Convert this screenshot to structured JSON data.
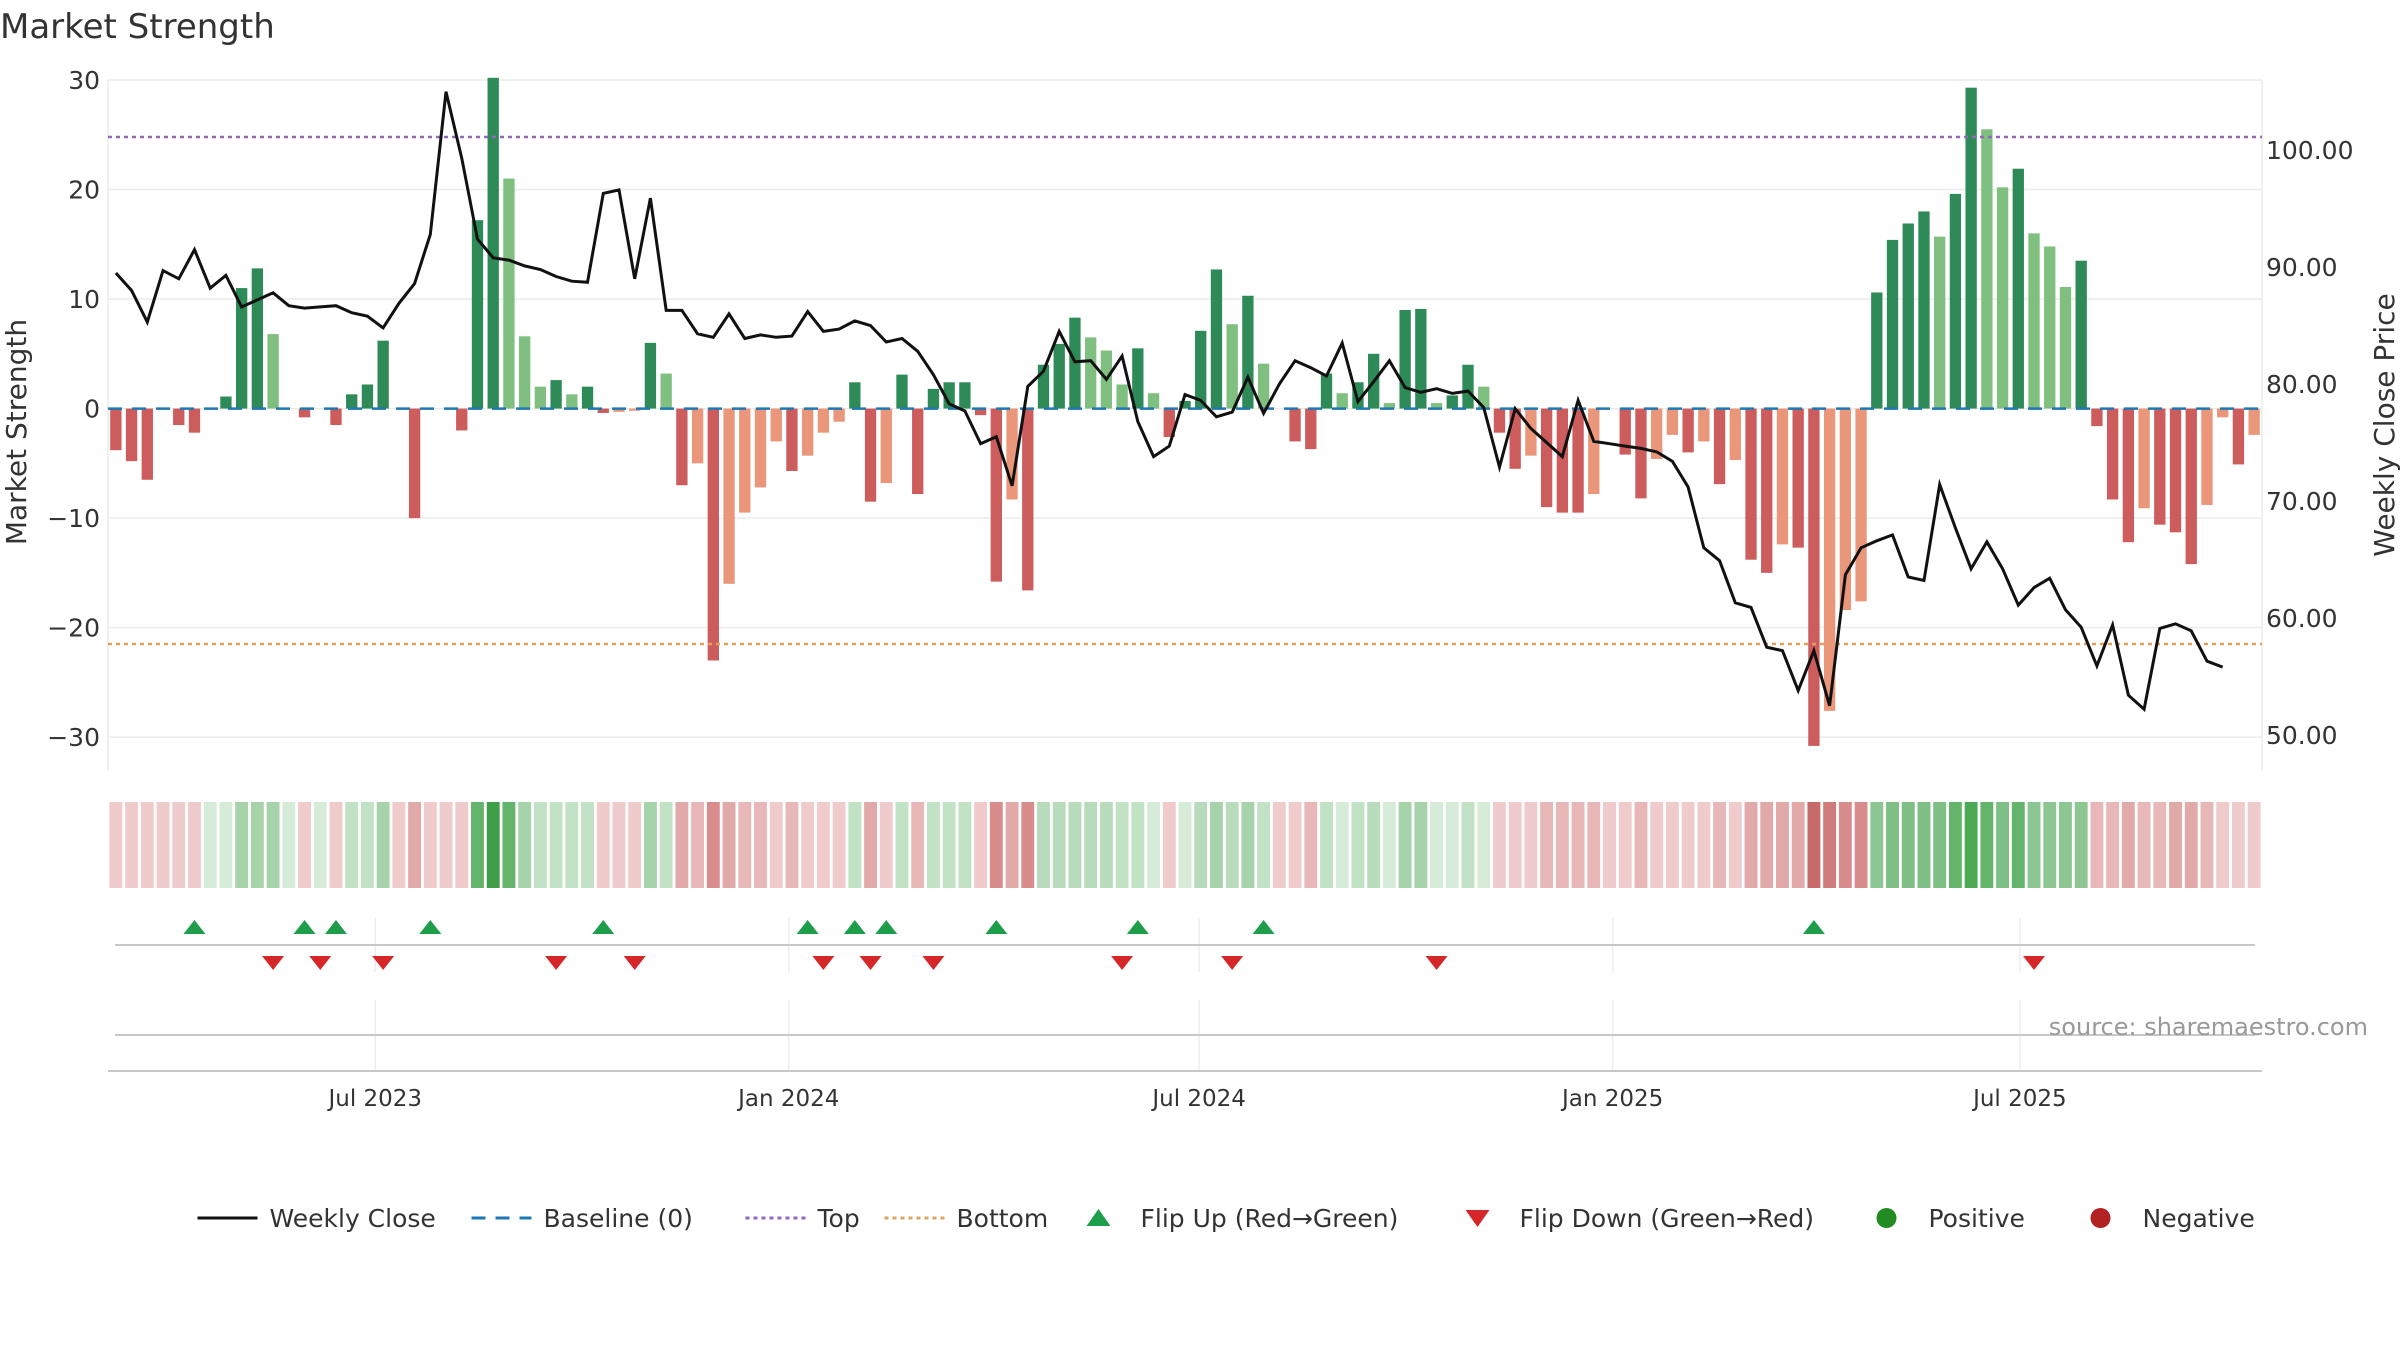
{
  "chart_data": {
    "type": "bar",
    "title": "Market Strength",
    "source": "source: sharemaestro.com",
    "ylabel_left": "Market Strength",
    "ylabel_right": "Weekly Close Price",
    "ylim_left": [
      -33,
      30
    ],
    "ylim_right": [
      47,
      106
    ],
    "yticks_left": [
      {
        "v": 30,
        "label": "30"
      },
      {
        "v": 20,
        "label": "20"
      },
      {
        "v": 10,
        "label": "10"
      },
      {
        "v": 0,
        "label": "0"
      },
      {
        "v": -10,
        "label": "−10"
      },
      {
        "v": -20,
        "label": "−20"
      },
      {
        "v": -30,
        "label": "−30"
      }
    ],
    "yticks_right": [
      {
        "v": 100,
        "label": "100.00"
      },
      {
        "v": 90,
        "label": "90.00"
      },
      {
        "v": 80,
        "label": "80.00"
      },
      {
        "v": 70,
        "label": "70.00"
      },
      {
        "v": 60,
        "label": "60.00"
      },
      {
        "v": 50,
        "label": "50.00"
      }
    ],
    "x_start_week": 0,
    "x_end_week": 133,
    "xticks": [
      {
        "week": 17.0,
        "label": "Jul 2023"
      },
      {
        "week": 43.3,
        "label": "Jan 2024"
      },
      {
        "week": 69.4,
        "label": "Jul 2024"
      },
      {
        "week": 95.7,
        "label": "Jan 2025"
      },
      {
        "week": 121.6,
        "label": "Jul 2025"
      }
    ],
    "top_line": 24.8,
    "bottom_line": -21.5,
    "strength": [
      -3.8,
      -4.8,
      -6.5,
      0,
      -1.5,
      -2.2,
      0,
      1.1,
      11,
      12.8,
      6.8,
      0,
      -0.8,
      0,
      -1.5,
      1.3,
      2.2,
      6.2,
      0,
      -10,
      0,
      0,
      -2,
      17.2,
      30.2,
      21,
      6.6,
      2,
      2.6,
      1.3,
      2,
      -0.4,
      -0.3,
      -0.2,
      6,
      3.2,
      -7,
      -5,
      -23,
      -16,
      -9.5,
      -7.2,
      -3,
      -5.7,
      -4.3,
      -2.2,
      -1.2,
      2.4,
      -8.5,
      -6.8,
      3.1,
      -7.8,
      1.8,
      2.4,
      2.4,
      -0.6,
      -15.8,
      -8.3,
      -16.6,
      4,
      5.9,
      8.3,
      6.5,
      5.3,
      2.2,
      5.5,
      1.4,
      -2.6,
      0.7,
      7.1,
      12.7,
      7.7,
      10.3,
      4.1,
      0,
      -3,
      -3.7,
      3.2,
      1.4,
      2.4,
      5,
      0.5,
      9,
      9.1,
      0.5,
      1.2,
      4,
      2,
      -2.2,
      -5.5,
      -4.3,
      -9,
      -9.5,
      -9.5,
      -7.8,
      0,
      -4.2,
      -8.2,
      -4.6,
      -2.4,
      -4,
      -3,
      -6.9,
      -4.7,
      -13.8,
      -15,
      -12.4,
      -12.7,
      -30.8,
      -27.6,
      -18.4,
      -17.6,
      10.6,
      15.4,
      16.9,
      18,
      15.7,
      19.6,
      29.3,
      25.5,
      20.2,
      21.9,
      16,
      14.8,
      11.1,
      13.5,
      -1.6,
      -8.3,
      -12.2,
      -9.1,
      -10.6,
      -11.3,
      -14.2,
      -8.8,
      -0.8,
      -5.1,
      -2.4
    ],
    "weekly_close": [
      89.5,
      88,
      85.3,
      89.7,
      89,
      91.5,
      88.2,
      89.3,
      86.6,
      87.2,
      87.8,
      86.7,
      86.5,
      86.6,
      86.7,
      86.1,
      85.8,
      84.8,
      86.9,
      88.6,
      92.8,
      105,
      99.3,
      92.4,
      90.8,
      90.6,
      90.1,
      89.8,
      89.2,
      88.8,
      88.7,
      96.3,
      96.6,
      89,
      95.9,
      86.3,
      86.3,
      84.3,
      84,
      86,
      83.9,
      84.2,
      84,
      84.1,
      86.2,
      84.5,
      84.7,
      85.4,
      85,
      83.6,
      83.9,
      82.8,
      80.8,
      78.3,
      77.7,
      74.9,
      75.5,
      71.3,
      79.8,
      81.1,
      84.5,
      81.9,
      82,
      80.4,
      82.4,
      76.8,
      73.8,
      74.7,
      79.1,
      78.6,
      77.2,
      77.6,
      80.6,
      77.5,
      80,
      82,
      81.4,
      80.7,
      83.5,
      78.5,
      80.2,
      82,
      79.7,
      79.3,
      79.6,
      79.2,
      79.4,
      78,
      72.9,
      77.9,
      76.2,
      75,
      73.8,
      78.6,
      75.1,
      74.9,
      74.7,
      74.5,
      74.2,
      73.4,
      71.2,
      66,
      64.9,
      61.3,
      60.9,
      57.5,
      57.2,
      53.8,
      57.2,
      52.5,
      63.7,
      66,
      66.6,
      67.1,
      63.5,
      63.2,
      71.4,
      67.7,
      64.2,
      66.5,
      64.2,
      61.1,
      62.6,
      63.4,
      60.7,
      59.2,
      55.9,
      59.4,
      53.4,
      52.2,
      59.1,
      59.5,
      58.9,
      56.3,
      55.8
    ],
    "heat_colors": [
      "#f0cbcb",
      "#f0cbcb",
      "#f0cbcb",
      "#f0cbcb",
      "#f0cbcb",
      "#f0cbcb",
      "#d6ecd8",
      "#d6ecd8",
      "#a7d3ab",
      "#a7d3ab",
      "#a7d3ab",
      "#d6ecd8",
      "#f0cbcb",
      "#d6ecd8",
      "#f0cbcb",
      "#c2e2c5",
      "#c2e2c5",
      "#a7d3ab",
      "#f0cbcb",
      "#e2a9a9",
      "#f0cbcb",
      "#f0cbcb",
      "#f0cbcb",
      "#64b46c",
      "#3f9f49",
      "#64b46c",
      "#a7d3ab",
      "#c2e2c5",
      "#c2e2c5",
      "#c2e2c5",
      "#c2e2c5",
      "#f0cbcb",
      "#f0cbcb",
      "#f0cbcb",
      "#a7d3ab",
      "#c2e2c5",
      "#e2a9a9",
      "#e8b8b8",
      "#d98c8c",
      "#e2a9a9",
      "#e8b8b8",
      "#e8b8b8",
      "#f0cbcb",
      "#e8b8b8",
      "#f0cbcb",
      "#f0cbcb",
      "#f0cbcb",
      "#c2e2c5",
      "#e2a9a9",
      "#f0cbcb",
      "#c2e2c5",
      "#e8b8b8",
      "#c2e2c5",
      "#c2e2c5",
      "#c2e2c5",
      "#f0cbcb",
      "#d98c8c",
      "#e2a9a9",
      "#d98c8c",
      "#b8dcbb",
      "#b8dcbb",
      "#b8dcbb",
      "#b8dcbb",
      "#b8dcbb",
      "#c2e2c5",
      "#c2e2c5",
      "#d6ecd8",
      "#f0cbcb",
      "#d6ecd8",
      "#b8dcbb",
      "#a7d3ab",
      "#b8dcbb",
      "#a7d3ab",
      "#c2e2c5",
      "#f0cbcb",
      "#f0cbcb",
      "#e8b8b8",
      "#c2e2c5",
      "#d6ecd8",
      "#c2e2c5",
      "#b8dcbb",
      "#d6ecd8",
      "#a7d3ab",
      "#a7d3ab",
      "#d6ecd8",
      "#d6ecd8",
      "#c2e2c5",
      "#d6ecd8",
      "#f0cbcb",
      "#f0cbcb",
      "#f0cbcb",
      "#e8b8b8",
      "#e8b8b8",
      "#e8b8b8",
      "#e8b8b8",
      "#f0cbcb",
      "#f0cbcb",
      "#e8b8b8",
      "#f0cbcb",
      "#f0cbcb",
      "#f0cbcb",
      "#f0cbcb",
      "#e8b8b8",
      "#f0cbcb",
      "#e2a9a9",
      "#e2a9a9",
      "#e2a9a9",
      "#e2a9a9",
      "#c66a6a",
      "#cf7b7b",
      "#d98c8c",
      "#d98c8c",
      "#8cc692",
      "#7dbf84",
      "#7dbf84",
      "#7dbf84",
      "#7dbf84",
      "#64b46c",
      "#4caa55",
      "#64b46c",
      "#7dbf84",
      "#64b46c",
      "#8cc692",
      "#8cc692",
      "#8cc692",
      "#8cc692",
      "#e8b8b8",
      "#e8b8b8",
      "#e2a9a9",
      "#e8b8b8",
      "#e8b8b8",
      "#e2a9a9",
      "#e2a9a9",
      "#e8b8b8",
      "#f0cbcb",
      "#f0cbcb",
      "#f0cbcb"
    ],
    "flip_up_weeks": [
      5.5,
      12.5,
      14.5,
      20.5,
      31.5,
      44.5,
      47.5,
      49.5,
      56.5,
      65.5,
      73.5,
      108.5
    ],
    "flip_down_weeks": [
      10.5,
      13.5,
      17.5,
      28.5,
      33.5,
      45.5,
      48.5,
      52.5,
      64.5,
      71.5,
      84.5,
      122.5
    ],
    "legend": [
      "Weekly Close",
      "Baseline (0)",
      "Top",
      "Bottom",
      "Flip Up (Red→Green)",
      "Flip Down (Green→Red)",
      "Positive",
      "Negative"
    ],
    "colors": {
      "pos_strong": "#2e8b57",
      "pos_light": "#7fbf7f",
      "neg_strong": "#cd5c5c",
      "neg_light": "#e9967a",
      "close_line": "#111111",
      "baseline": "#1f77b4",
      "top": "#9467bd",
      "bottom": "#e0a060",
      "flip_up": "#1e9e4a",
      "flip_down": "#d62728",
      "positive_dot": "#228b22",
      "negative_dot": "#b22222"
    }
  }
}
